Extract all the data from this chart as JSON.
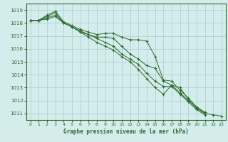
{
  "title": "Graphe pression niveau de la mer (hPa)",
  "x": [
    0,
    1,
    2,
    3,
    4,
    5,
    6,
    7,
    8,
    9,
    10,
    11,
    12,
    13,
    14,
    15,
    16,
    17,
    18,
    19,
    20,
    21,
    22,
    23
  ],
  "line1": [
    1018.2,
    1018.2,
    1018.6,
    1018.9,
    1018.1,
    1017.8,
    1017.5,
    1017.3,
    1017.1,
    1017.2,
    1017.2,
    1016.9,
    1016.7,
    1016.7,
    1016.6,
    1015.4,
    1013.6,
    1013.5,
    1012.8,
    1012.2,
    1011.5,
    1011.1,
    null,
    null
  ],
  "line2": [
    1018.2,
    1018.2,
    1018.5,
    1018.8,
    1018.0,
    1017.7,
    1017.4,
    1017.1,
    1016.9,
    1016.9,
    1016.8,
    1016.2,
    1015.6,
    1015.2,
    1014.7,
    1014.5,
    1013.5,
    1013.2,
    1012.6,
    1012.0,
    1011.4,
    1011.0,
    null,
    null
  ],
  "line3": [
    1018.2,
    1018.2,
    1018.4,
    1018.6,
    1018.0,
    1017.7,
    1017.3,
    1017.1,
    1016.8,
    1016.5,
    1016.2,
    1015.6,
    1015.2,
    1014.8,
    1014.1,
    1013.5,
    1013.1,
    1013.1,
    1012.5,
    1011.9,
    1011.3,
    1010.9,
    null,
    null
  ],
  "line4": [
    1018.2,
    1018.2,
    1018.3,
    1018.5,
    1018.0,
    1017.7,
    1017.3,
    1016.9,
    1016.5,
    1016.2,
    1015.9,
    1015.4,
    1015.0,
    1014.4,
    1013.7,
    1013.0,
    1012.5,
    1013.2,
    1013.0,
    1012.1,
    1011.5,
    1011.0,
    1010.9,
    1010.8
  ],
  "line_color": "#2d6a2d",
  "bg_color": "#d4ecec",
  "grid_color": "#aacccc",
  "axis_color": "#2d6a2d",
  "ylim": [
    1010.5,
    1019.5
  ],
  "yticks": [
    1011,
    1012,
    1013,
    1014,
    1015,
    1016,
    1017,
    1018,
    1019
  ],
  "xlim": [
    -0.5,
    23.5
  ],
  "xticks": [
    0,
    1,
    2,
    3,
    4,
    5,
    6,
    7,
    8,
    9,
    10,
    11,
    12,
    13,
    14,
    15,
    16,
    17,
    18,
    19,
    20,
    21,
    22,
    23
  ]
}
